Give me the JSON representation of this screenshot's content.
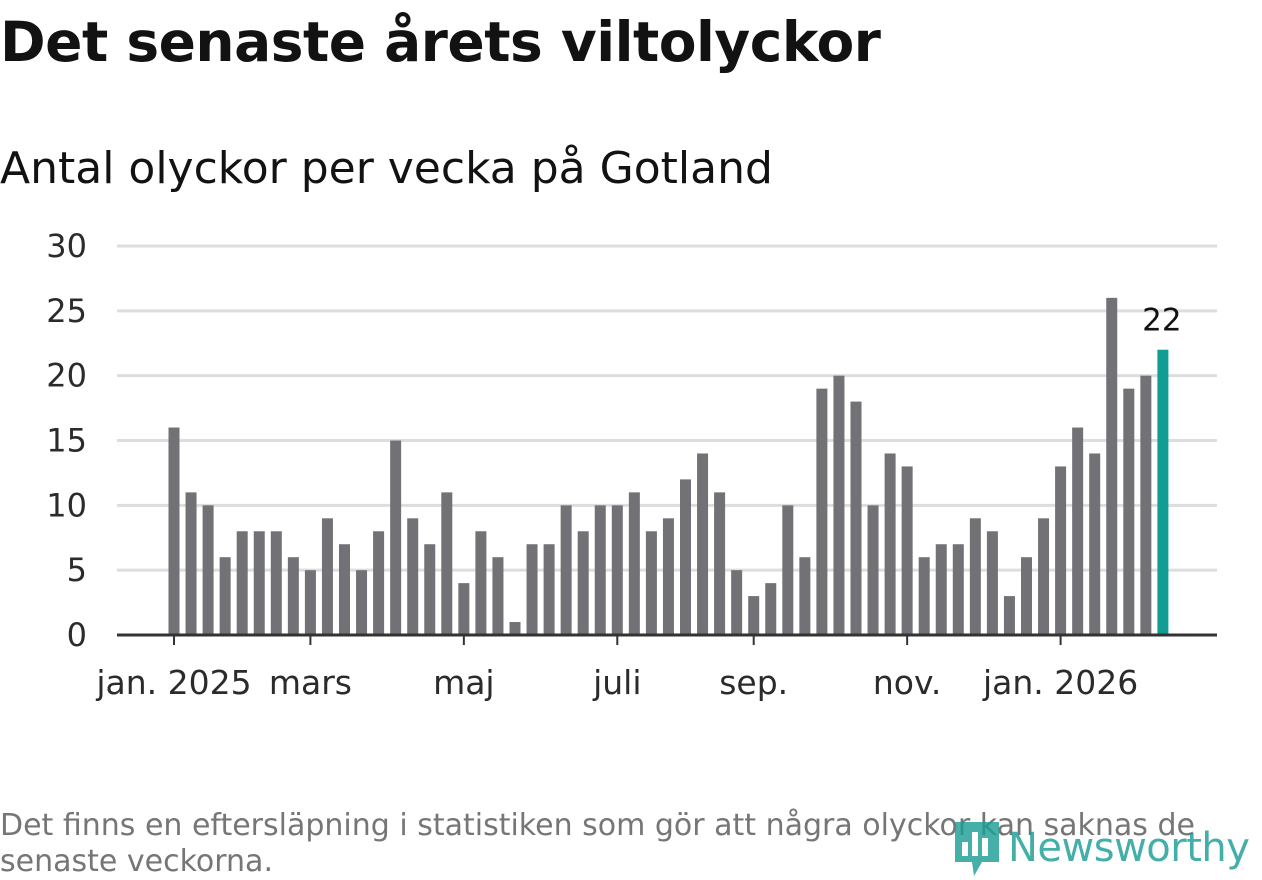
{
  "header": {
    "title": "Det senaste årets viltolyckor",
    "subtitle": "Antal olyckor per vecka på Gotland"
  },
  "footer": {
    "note": "Det finns en eftersläpning i statistiken som gör att några olyckor kan saknas de senaste veckorna.",
    "brand": "Newsworthy"
  },
  "colors": {
    "bar": "#727176",
    "highlight": "#0f9d94",
    "grid": "#dddddd",
    "axis": "#333333"
  },
  "chart_data": {
    "type": "bar",
    "title": "Det senaste årets viltolyckor",
    "subtitle": "Antal olyckor per vecka på Gotland",
    "xlabel": "",
    "ylabel": "",
    "ylim": [
      0,
      30
    ],
    "yticks": [
      0,
      5,
      10,
      15,
      20,
      25,
      30
    ],
    "values": [
      16,
      11,
      10,
      6,
      8,
      8,
      8,
      6,
      5,
      9,
      7,
      5,
      8,
      15,
      9,
      7,
      11,
      4,
      8,
      6,
      1,
      7,
      7,
      10,
      8,
      10,
      10,
      11,
      8,
      9,
      12,
      14,
      11,
      5,
      3,
      4,
      10,
      6,
      19,
      20,
      18,
      10,
      14,
      13,
      6,
      7,
      7,
      9,
      8,
      3,
      6,
      9,
      13,
      16,
      14,
      26,
      19,
      20,
      22
    ],
    "x_ticks": [
      {
        "label": "jan. 2025",
        "index": 0
      },
      {
        "label": "mars",
        "index": 8
      },
      {
        "label": "maj",
        "index": 17
      },
      {
        "label": "juli",
        "index": 26
      },
      {
        "label": "sep.",
        "index": 34
      },
      {
        "label": "nov.",
        "index": 43
      },
      {
        "label": "jan. 2026",
        "index": 52
      }
    ],
    "highlight_index": 58,
    "highlight_label": "22",
    "grid": true
  }
}
